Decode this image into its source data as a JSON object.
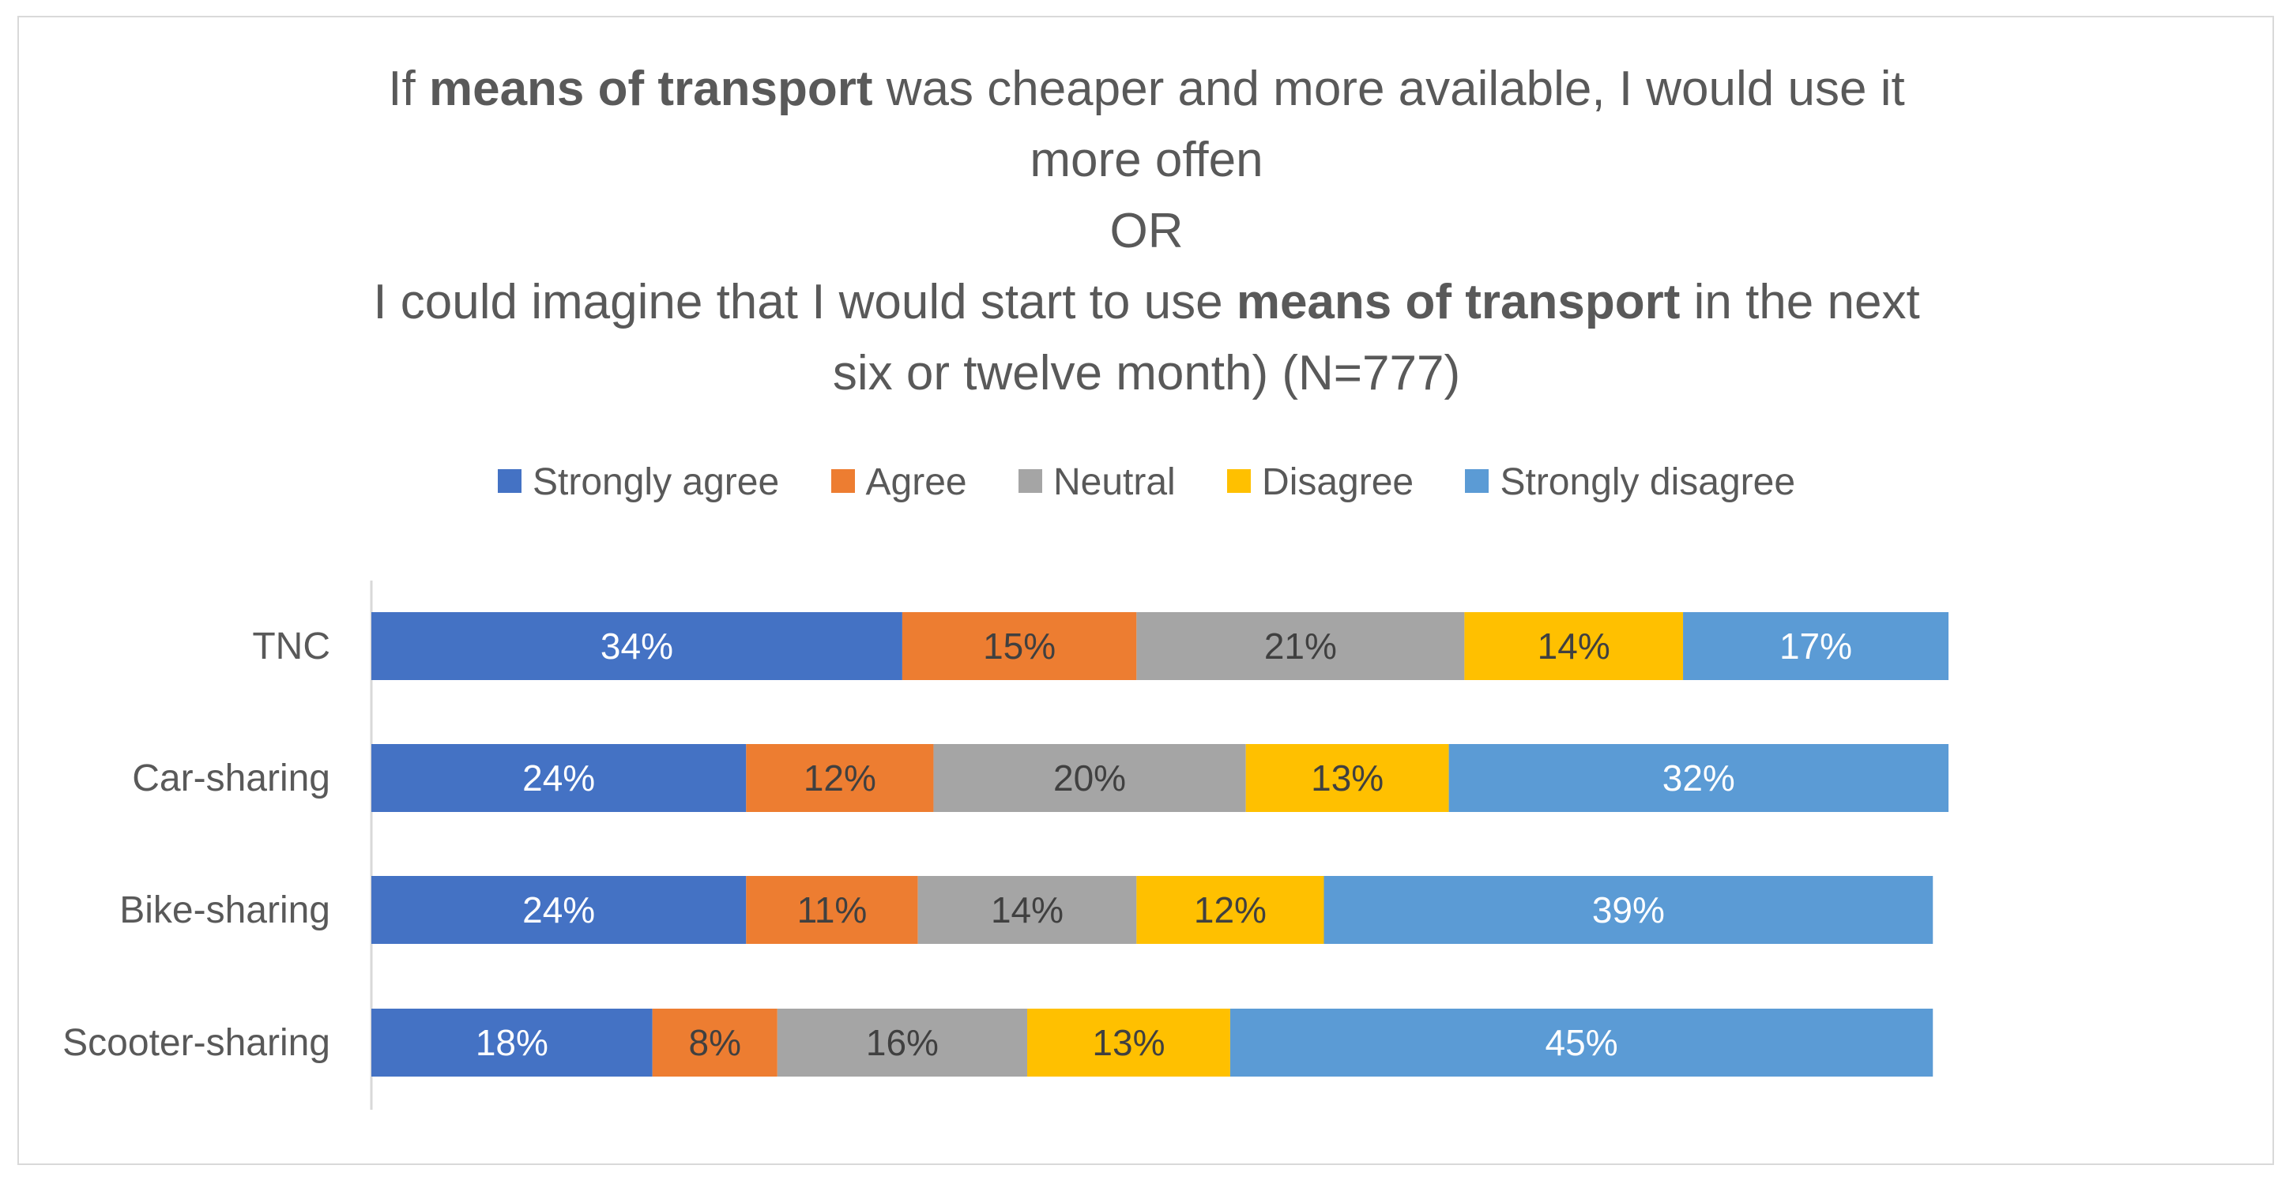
{
  "chart_data": {
    "type": "bar",
    "orientation": "horizontal",
    "stacked": true,
    "title": {
      "line1_pre": "If ",
      "line1_bold": "means of transport",
      "line1_post": " was cheaper and more available,  I would use it",
      "line2": "more offen",
      "line3": "OR",
      "line4_pre": "I could imagine that I would start to use ",
      "line4_bold": "means of transport",
      "line4_post": "  in the next",
      "line5": "six or twelve month) (N=777)"
    },
    "legend_position": "top",
    "categories": [
      "TNC",
      "Car-sharing",
      "Bike-sharing",
      "Scooter-sharing"
    ],
    "series": [
      {
        "name": "Strongly agree",
        "color": "#4472c4",
        "label_color": "#ffffff",
        "values": [
          34,
          24,
          24,
          18
        ],
        "labels": [
          "34%",
          "24%",
          "24%",
          "18%"
        ]
      },
      {
        "name": "Agree",
        "color": "#ed7d31",
        "label_color": "#404040",
        "values": [
          15,
          12,
          11,
          8
        ],
        "labels": [
          "15%",
          "12%",
          "11%",
          "8%"
        ]
      },
      {
        "name": "Neutral",
        "color": "#a5a5a5",
        "label_color": "#404040",
        "values": [
          21,
          20,
          14,
          16
        ],
        "labels": [
          "21%",
          "20%",
          "14%",
          "16%"
        ]
      },
      {
        "name": "Disagree",
        "color": "#ffc000",
        "label_color": "#404040",
        "values": [
          14,
          13,
          12,
          13
        ],
        "labels": [
          "14%",
          "13%",
          "12%",
          "13%"
        ]
      },
      {
        "name": "Strongly disagree",
        "color": "#5b9bd5",
        "label_color": "#ffffff",
        "values": [
          17,
          32,
          39,
          45
        ],
        "labels": [
          "17%",
          "32%",
          "39%",
          "45%"
        ]
      }
    ],
    "xlim": [
      0,
      101
    ],
    "xlabel": "",
    "ylabel": "",
    "grid": false
  }
}
